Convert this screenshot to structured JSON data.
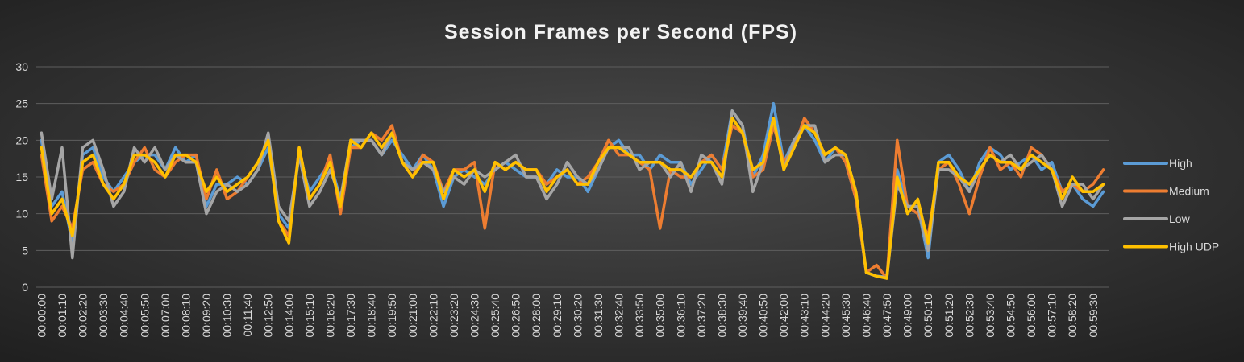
{
  "chart_data": {
    "type": "line",
    "title": "Session Frames per Second (FPS)",
    "categories": [
      "00:00:00",
      null,
      "00:01:10",
      null,
      "00:02:20",
      null,
      "00:03:30",
      null,
      "00:04:40",
      null,
      "00:05:50",
      null,
      "00:07:00",
      null,
      "00:08:10",
      null,
      "00:09:20",
      null,
      "00:10:30",
      null,
      "00:11:40",
      null,
      "00:12:50",
      null,
      "00:14:00",
      null,
      "00:15:10",
      null,
      "00:16:20",
      null,
      "00:17:30",
      null,
      "00:18:40",
      null,
      "00:19:50",
      null,
      "00:21:00",
      null,
      "00:22:10",
      null,
      "00:23:20",
      null,
      "00:24:30",
      null,
      "00:25:40",
      null,
      "00:26:50",
      null,
      "00:28:00",
      null,
      "00:29:10",
      null,
      "00:30:20",
      null,
      "00:31:30",
      null,
      "00:32:40",
      null,
      "00:33:50",
      null,
      "00:35:00",
      null,
      "00:36:10",
      null,
      "00:37:20",
      null,
      "00:38:30",
      null,
      "00:39:40",
      null,
      "00:40:50",
      null,
      "00:42:00",
      null,
      "00:43:10",
      null,
      "00:44:20",
      null,
      "00:45:30",
      null,
      "00:46:40",
      null,
      "00:47:50",
      null,
      "00:49:00",
      null,
      "00:50:10",
      null,
      "00:51:20",
      null,
      "00:52:30",
      null,
      "00:53:40",
      null,
      "00:54:50",
      null,
      "00:56:00",
      null,
      "00:57:10",
      null,
      "00:58:20",
      null,
      "00:59:30",
      null
    ],
    "series": [
      {
        "name": "High",
        "color": "#5b9bd5",
        "values": [
          20,
          11,
          13,
          6,
          18,
          19,
          15,
          13,
          15,
          17,
          18,
          18,
          16,
          19,
          17,
          18,
          11,
          14,
          14,
          15,
          14,
          16,
          19,
          10,
          8,
          18,
          13,
          15,
          17,
          12,
          19,
          20,
          20,
          18,
          20,
          18,
          16,
          18,
          16,
          11,
          15,
          16,
          15,
          14,
          16,
          17,
          16,
          15,
          15,
          14,
          16,
          15,
          15,
          13,
          16,
          19,
          20,
          18,
          18,
          16,
          18,
          17,
          17,
          14,
          16,
          18,
          16,
          24,
          22,
          15,
          18,
          25,
          17,
          20,
          22,
          20,
          17,
          19,
          17,
          12,
          2,
          1.5,
          1.4,
          16,
          11,
          11,
          4,
          17,
          18,
          16,
          13,
          17,
          19,
          18,
          16,
          17,
          18,
          16,
          17,
          13,
          14,
          12,
          11,
          13
        ]
      },
      {
        "name": "Medium",
        "color": "#ed7d31",
        "values": [
          18,
          9,
          11,
          8,
          16,
          17,
          14,
          13,
          14,
          17,
          19,
          16,
          15,
          17,
          18,
          18,
          12,
          16,
          12,
          13,
          15,
          17,
          20,
          9,
          7,
          19,
          12,
          14,
          18,
          10,
          19,
          19,
          21,
          20,
          22,
          17,
          15,
          18,
          17,
          13,
          16,
          16,
          17,
          8,
          17,
          16,
          17,
          16,
          16,
          14,
          15,
          16,
          14,
          15,
          17,
          20,
          18,
          18,
          17,
          16,
          8,
          16,
          15,
          15,
          17,
          18,
          16,
          22,
          21,
          15,
          16,
          22,
          17,
          19,
          23,
          21,
          18,
          19,
          17,
          12,
          2,
          3,
          1.2,
          20,
          11,
          10,
          7,
          16,
          17,
          14,
          10,
          15,
          19,
          16,
          17,
          15,
          19,
          18,
          16,
          13,
          14,
          13,
          14,
          16
        ]
      },
      {
        "name": "Low",
        "color": "#a5a5a5",
        "values": [
          21,
          12,
          19,
          4,
          19,
          20,
          16,
          11,
          13,
          19,
          17,
          19,
          16,
          18,
          17,
          17,
          10,
          13,
          14,
          13,
          14,
          16,
          21,
          11,
          9,
          18,
          11,
          13,
          16,
          12,
          20,
          20,
          20,
          18,
          21,
          17,
          16,
          17,
          16,
          13,
          15,
          14,
          16,
          15,
          16,
          17,
          18,
          15,
          15,
          12,
          14,
          17,
          15,
          14,
          16,
          19,
          19,
          19,
          16,
          17,
          17,
          15,
          17,
          13,
          18,
          17,
          14,
          24,
          22,
          13,
          17,
          23,
          16,
          20,
          22,
          22,
          17,
          18,
          18,
          13,
          2,
          1.5,
          1.3,
          14,
          11,
          11,
          5,
          16,
          16,
          15,
          13,
          16,
          18,
          17,
          18,
          16,
          17,
          18,
          16,
          11,
          14,
          14,
          12,
          14
        ]
      },
      {
        "name": "High UDP",
        "color": "#ffc000",
        "values": [
          19,
          10,
          12,
          7,
          17,
          18,
          14,
          12,
          14,
          18,
          18,
          17,
          15,
          18,
          18,
          17,
          13,
          15,
          13,
          14,
          15,
          17,
          20,
          9,
          6,
          19,
          12,
          14,
          17,
          11,
          20,
          19,
          21,
          19,
          21,
          17,
          15,
          17,
          17,
          12,
          16,
          15,
          16,
          13,
          17,
          16,
          17,
          16,
          16,
          13,
          15,
          16,
          14,
          14,
          17,
          19,
          19,
          18,
          17,
          17,
          17,
          16,
          16,
          15,
          17,
          17,
          15,
          23,
          21,
          16,
          17,
          23,
          16,
          19,
          22,
          21,
          18,
          19,
          18,
          13,
          2,
          1.5,
          1.2,
          15,
          10,
          12,
          6,
          17,
          17,
          15,
          14,
          16,
          18,
          17,
          17,
          16,
          18,
          17,
          16,
          12,
          15,
          13,
          13,
          14
        ]
      }
    ],
    "ylim": [
      0,
      30
    ],
    "yticks": [
      0,
      5,
      10,
      15,
      20,
      25,
      30
    ],
    "grid": true,
    "legend": "right"
  }
}
